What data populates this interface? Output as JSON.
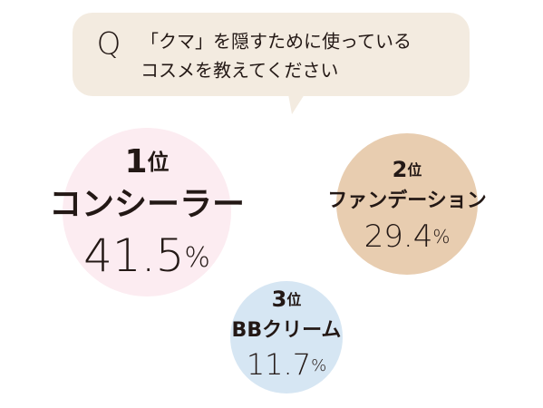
{
  "question": {
    "mark": "Q",
    "lines": [
      "「クマ」を隠すために使っている",
      "コスメを教えてください"
    ]
  },
  "rankings": [
    {
      "rank": 1,
      "rank_unit": "位",
      "name": "コンシーラー",
      "value": 41.5,
      "unit": "%"
    },
    {
      "rank": 2,
      "rank_unit": "位",
      "name": "ファンデーション",
      "value": 29.4,
      "unit": "%"
    },
    {
      "rank": 3,
      "rank_unit": "位",
      "name": "BBクリーム",
      "value": 11.7,
      "unit": "%"
    }
  ]
}
